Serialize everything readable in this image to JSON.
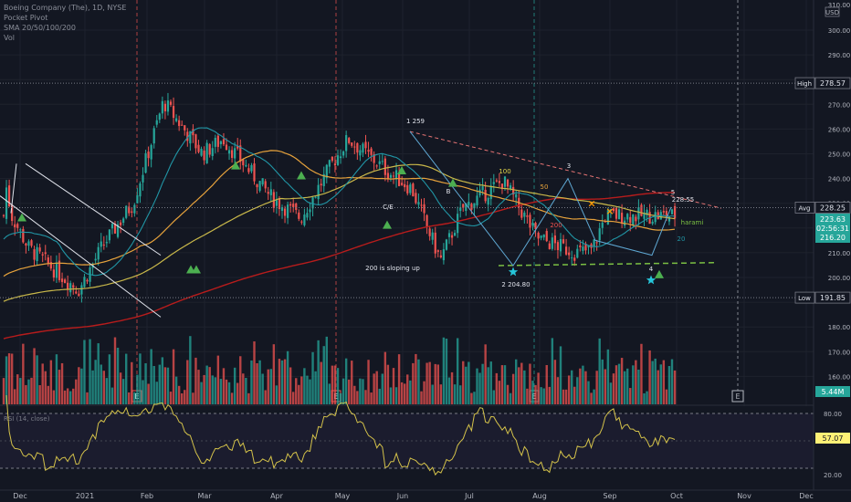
{
  "legend": {
    "symbol": "Boeing Company (The), 1D, NYSE",
    "indicators": [
      "Pocket Pivot",
      "SMA 20/50/100/200",
      "Vol"
    ]
  },
  "price_axis": {
    "currency": "USD",
    "top_tick": "310.00",
    "ticks": [
      "300.00",
      "290.00",
      "270.00",
      "260.00",
      "250.00",
      "240.00",
      "230.00",
      "210.00",
      "200.00",
      "180.00",
      "170.00",
      "160.00"
    ],
    "badges": [
      {
        "label": "High",
        "value": "278.57",
        "color": "#131722"
      },
      {
        "label": "Avg",
        "value": "228.25",
        "color": "#131722"
      },
      {
        "label": "",
        "value": "223.63",
        "color": "#26a69a"
      },
      {
        "label": "",
        "value": "02:56:31",
        "color": "#26a69a"
      },
      {
        "label": "",
        "value": "216.20",
        "color": "#26a69a"
      },
      {
        "label": "Low",
        "value": "191.85",
        "color": "#131722"
      },
      {
        "label": "",
        "value": "5.44M",
        "color": "#26a69a"
      }
    ]
  },
  "rsi": {
    "label": "RSI (14, close)",
    "ticks": [
      "80.00",
      "20.00"
    ],
    "current": "57.07"
  },
  "time_axis": [
    "Dec",
    "2021",
    "Feb",
    "Mar",
    "Apr",
    "May",
    "Jun",
    "Jul",
    "Aug",
    "Sep",
    "Oct",
    "Nov",
    "Dec"
  ],
  "annotations": {
    "wave1": "1 259",
    "wave2": "2 204.80",
    "wave3": "3",
    "wave4": "4",
    "wave5": "5",
    "wave5_price": "228.55",
    "sma_200_note": "200 is sloping up",
    "harami": "harami",
    "sma100": "100",
    "sma50": "50",
    "sma200": "200",
    "sma20": "20",
    "wave_b": "B",
    "wave_c": "C/E",
    "earnings_marker": "E"
  },
  "colors": {
    "bg": "#131722",
    "up": "#26a69a",
    "down": "#ef5350",
    "sma20": "#2196a6",
    "sma50": "#e6a23c",
    "sma100": "#c9b84a",
    "sma200": "#b71c1c",
    "rsi": "#d4c24a",
    "pivot": "#4caf50",
    "resist": "#e57373",
    "support": "#7bc043"
  },
  "chart_data": {
    "type": "candlestick",
    "title": "Boeing Company (The), 1D, NYSE",
    "ylim": [
      150,
      310
    ],
    "x_labels": [
      "Dec",
      "2021",
      "Feb",
      "Mar",
      "Apr",
      "May",
      "Jun",
      "Jul",
      "Aug",
      "Sep",
      "Oct",
      "Nov",
      "Dec"
    ],
    "close_path_points": [
      {
        "date": "Nov 23",
        "close": 205
      },
      {
        "date": "Dec 3",
        "close": 240
      },
      {
        "date": "Dec 16",
        "close": 225
      },
      {
        "date": "Jan 5",
        "close": 212
      },
      {
        "date": "Jan 29",
        "close": 195
      },
      {
        "date": "Feb 10",
        "close": 213
      },
      {
        "date": "Feb 25",
        "close": 230
      },
      {
        "date": "Mar 12",
        "close": 271
      },
      {
        "date": "Mar 31",
        "close": 250
      },
      {
        "date": "Apr 9",
        "close": 256
      },
      {
        "date": "Apr 30",
        "close": 232
      },
      {
        "date": "May 13",
        "close": 224
      },
      {
        "date": "May 28",
        "close": 247
      },
      {
        "date": "Jun 4",
        "close": 256
      },
      {
        "date": "Jun 24",
        "close": 243
      },
      {
        "date": "Jul 6",
        "close": 236
      },
      {
        "date": "Jul 19",
        "close": 207
      },
      {
        "date": "Jul 29",
        "close": 228
      },
      {
        "date": "Aug 16",
        "close": 239
      },
      {
        "date": "Aug 31",
        "close": 216
      },
      {
        "date": "Sep 17",
        "close": 210
      },
      {
        "date": "Sep 24",
        "close": 211
      },
      {
        "date": "Sep 30",
        "close": 225
      }
    ],
    "levels": {
      "high": 278.57,
      "avg": 228.25,
      "last": 223.63,
      "sma20": 216.2,
      "low": 191.85
    },
    "rsi_last": 57.07,
    "volume_last": "5.44M"
  }
}
